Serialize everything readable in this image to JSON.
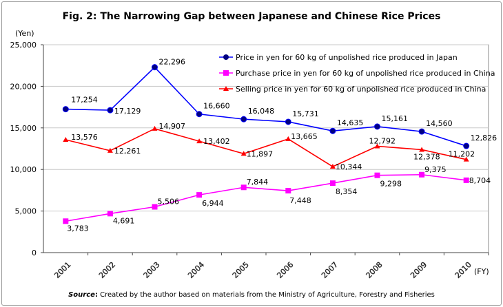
{
  "chart_data": {
    "type": "line",
    "title": "Fig. 2: The Narrowing Gap between Japanese and Chinese Rice Prices",
    "ylabel": "(Yen)",
    "xlabel": "(FY)",
    "ylim": [
      0,
      25000
    ],
    "yticks": [
      0,
      5000,
      10000,
      15000,
      20000,
      25000
    ],
    "ytick_labels": [
      "0",
      "5,000",
      "10,000",
      "15,000",
      "20,000",
      "25,000"
    ],
    "grid": true,
    "legend_position": "top-right",
    "categories": [
      "2001",
      "2002",
      "2003",
      "2004",
      "2005",
      "2006",
      "2007",
      "2008",
      "2009",
      "2010"
    ],
    "series": [
      {
        "name": "Price in yen for 60 kg of unpolished rice produced in Japan",
        "color": "#0000FF",
        "marker": "circle",
        "marker_color": "#000080",
        "values": [
          17254,
          17129,
          22296,
          16660,
          16048,
          15731,
          14635,
          15161,
          14560,
          12826
        ],
        "labels": [
          "17,254",
          "17,129",
          "22,296",
          "16,660",
          "16,048",
          "15,731",
          "14,635",
          "15,161",
          "14,560",
          "12,826"
        ]
      },
      {
        "name": "Purchase price in yen for 60 kg of unpolished rice produced in China",
        "color": "#FF00FF",
        "marker": "square",
        "marker_color": "#FF00FF",
        "values": [
          3783,
          4691,
          5506,
          6944,
          7844,
          7448,
          8354,
          9298,
          9375,
          8704
        ],
        "labels": [
          "3,783",
          "4,691",
          "5,506",
          "6,944",
          "7,844",
          "7,448",
          "8,354",
          "9,298",
          "9,375",
          "8,704"
        ]
      },
      {
        "name": "Selling price in yen for 60 kg of unpolished rice produced in China",
        "color": "#FF0000",
        "marker": "triangle",
        "marker_color": "#FF0000",
        "values": [
          13576,
          12261,
          14907,
          13402,
          11897,
          13665,
          10344,
          12792,
          12378,
          11202
        ],
        "labels": [
          "13,576",
          "12,261",
          "14,907",
          "13,402",
          "11,897",
          "13,665",
          "10,344",
          "12,792",
          "12,378",
          "11,202"
        ]
      }
    ],
    "source_label": "Source",
    "source_sep": ":",
    "source_text": " Created by the author based on materials from the Ministry of Agriculture, Forestry and Fisheries"
  }
}
